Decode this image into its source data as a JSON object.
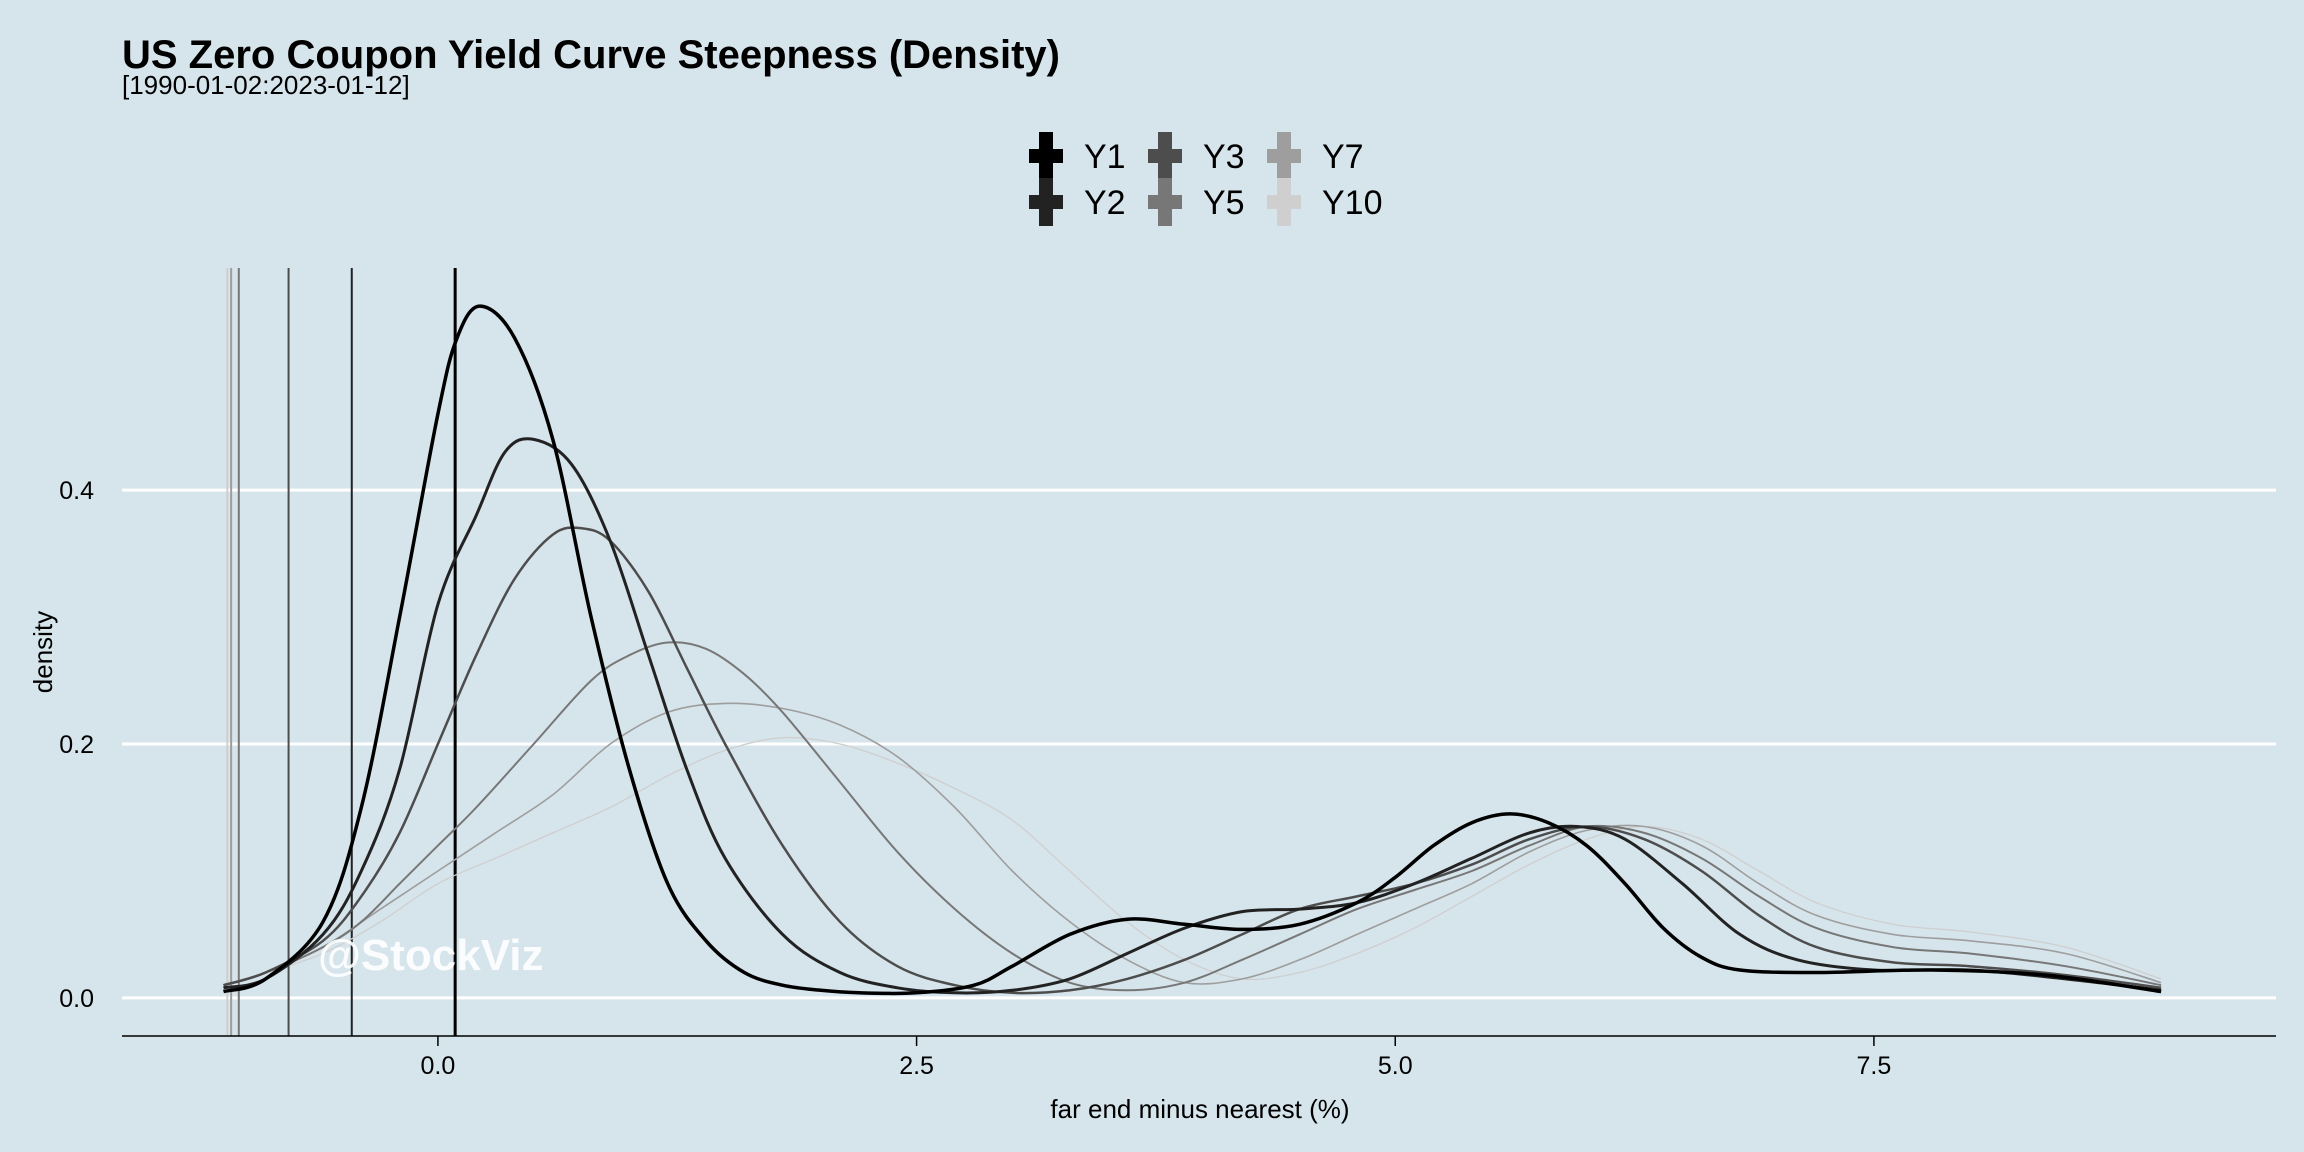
{
  "chart_data": {
    "type": "line",
    "title": "US Zero Coupon Yield Curve Steepness (Density)",
    "subtitle": "[1990-01-02:2023-01-12]",
    "xlabel": "far end minus nearest (%)",
    "ylabel": "density",
    "xlim": [
      -1.65,
      9.6
    ],
    "ylim": [
      -0.03,
      0.575
    ],
    "x_ticks": [
      0.0,
      2.5,
      5.0,
      7.5
    ],
    "x_tick_labels": [
      "0.0",
      "2.5",
      "5.0",
      "7.5"
    ],
    "y_ticks": [
      0.0,
      0.2,
      0.4
    ],
    "y_tick_labels": [
      "0.0",
      "0.2",
      "0.4"
    ],
    "grid": "horizontal major lines",
    "legend_position": "top",
    "watermark": "@StockViz",
    "series": [
      {
        "name": "Y1",
        "color": "#000000",
        "vline_x": 0.09,
        "points": [
          [
            -1.12,
            0.005
          ],
          [
            -0.9,
            0.015
          ],
          [
            -0.6,
            0.06
          ],
          [
            -0.4,
            0.15
          ],
          [
            -0.2,
            0.3
          ],
          [
            0,
            0.46
          ],
          [
            0.1,
            0.52
          ],
          [
            0.22,
            0.545
          ],
          [
            0.4,
            0.52
          ],
          [
            0.6,
            0.44
          ],
          [
            0.8,
            0.3
          ],
          [
            1,
            0.18
          ],
          [
            1.2,
            0.09
          ],
          [
            1.4,
            0.045
          ],
          [
            1.6,
            0.02
          ],
          [
            1.8,
            0.01
          ],
          [
            2,
            0.006
          ],
          [
            2.2,
            0.004
          ],
          [
            2.5,
            0.004
          ],
          [
            2.8,
            0.01
          ],
          [
            3,
            0.025
          ],
          [
            3.3,
            0.05
          ],
          [
            3.6,
            0.062
          ],
          [
            3.9,
            0.058
          ],
          [
            4.2,
            0.054
          ],
          [
            4.5,
            0.058
          ],
          [
            4.8,
            0.075
          ],
          [
            5,
            0.095
          ],
          [
            5.2,
            0.12
          ],
          [
            5.4,
            0.138
          ],
          [
            5.6,
            0.145
          ],
          [
            5.8,
            0.138
          ],
          [
            6,
            0.12
          ],
          [
            6.2,
            0.09
          ],
          [
            6.4,
            0.055
          ],
          [
            6.6,
            0.032
          ],
          [
            6.8,
            0.022
          ],
          [
            7.2,
            0.02
          ],
          [
            7.8,
            0.022
          ],
          [
            8.4,
            0.018
          ],
          [
            9,
            0.005
          ]
        ]
      },
      {
        "name": "Y2",
        "color": "#222222",
        "vline_x": -0.45,
        "points": [
          [
            -1.12,
            0.008
          ],
          [
            -0.9,
            0.015
          ],
          [
            -0.6,
            0.05
          ],
          [
            -0.4,
            0.1
          ],
          [
            -0.2,
            0.18
          ],
          [
            0,
            0.31
          ],
          [
            0.2,
            0.38
          ],
          [
            0.35,
            0.43
          ],
          [
            0.5,
            0.44
          ],
          [
            0.7,
            0.42
          ],
          [
            0.9,
            0.36
          ],
          [
            1.1,
            0.27
          ],
          [
            1.3,
            0.18
          ],
          [
            1.5,
            0.11
          ],
          [
            1.8,
            0.05
          ],
          [
            2.1,
            0.02
          ],
          [
            2.4,
            0.008
          ],
          [
            2.7,
            0.004
          ],
          [
            3,
            0.006
          ],
          [
            3.3,
            0.015
          ],
          [
            3.6,
            0.035
          ],
          [
            3.9,
            0.055
          ],
          [
            4.2,
            0.068
          ],
          [
            4.5,
            0.07
          ],
          [
            4.8,
            0.075
          ],
          [
            5.1,
            0.09
          ],
          [
            5.4,
            0.11
          ],
          [
            5.7,
            0.13
          ],
          [
            5.95,
            0.135
          ],
          [
            6.2,
            0.125
          ],
          [
            6.5,
            0.09
          ],
          [
            6.8,
            0.05
          ],
          [
            7.1,
            0.03
          ],
          [
            7.5,
            0.022
          ],
          [
            8,
            0.022
          ],
          [
            8.5,
            0.015
          ],
          [
            9,
            0.006
          ]
        ]
      },
      {
        "name": "Y3",
        "color": "#4d4d4d",
        "vline_x": -0.78,
        "points": [
          [
            -1.12,
            0.01
          ],
          [
            -0.9,
            0.02
          ],
          [
            -0.6,
            0.045
          ],
          [
            -0.4,
            0.08
          ],
          [
            -0.2,
            0.13
          ],
          [
            0,
            0.2
          ],
          [
            0.2,
            0.27
          ],
          [
            0.4,
            0.33
          ],
          [
            0.6,
            0.365
          ],
          [
            0.75,
            0.37
          ],
          [
            0.9,
            0.36
          ],
          [
            1.1,
            0.32
          ],
          [
            1.3,
            0.26
          ],
          [
            1.5,
            0.2
          ],
          [
            1.8,
            0.12
          ],
          [
            2.1,
            0.06
          ],
          [
            2.4,
            0.025
          ],
          [
            2.7,
            0.01
          ],
          [
            3,
            0.004
          ],
          [
            3.3,
            0.006
          ],
          [
            3.6,
            0.015
          ],
          [
            3.9,
            0.03
          ],
          [
            4.2,
            0.05
          ],
          [
            4.5,
            0.07
          ],
          [
            4.8,
            0.08
          ],
          [
            5.1,
            0.09
          ],
          [
            5.4,
            0.105
          ],
          [
            5.7,
            0.125
          ],
          [
            6,
            0.135
          ],
          [
            6.3,
            0.125
          ],
          [
            6.6,
            0.1
          ],
          [
            6.9,
            0.065
          ],
          [
            7.2,
            0.04
          ],
          [
            7.6,
            0.028
          ],
          [
            8,
            0.025
          ],
          [
            8.5,
            0.018
          ],
          [
            9,
            0.008
          ]
        ]
      },
      {
        "name": "Y5",
        "color": "#777777",
        "vline_x": -1.04,
        "points": [
          [
            -1.12,
            0.01
          ],
          [
            -0.9,
            0.02
          ],
          [
            -0.6,
            0.04
          ],
          [
            -0.4,
            0.06
          ],
          [
            -0.2,
            0.09
          ],
          [
            0,
            0.12
          ],
          [
            0.2,
            0.15
          ],
          [
            0.5,
            0.2
          ],
          [
            0.8,
            0.25
          ],
          [
            1.0,
            0.27
          ],
          [
            1.2,
            0.28
          ],
          [
            1.4,
            0.275
          ],
          [
            1.6,
            0.255
          ],
          [
            1.8,
            0.225
          ],
          [
            2.1,
            0.17
          ],
          [
            2.4,
            0.115
          ],
          [
            2.7,
            0.07
          ],
          [
            3,
            0.035
          ],
          [
            3.3,
            0.012
          ],
          [
            3.6,
            0.006
          ],
          [
            3.9,
            0.012
          ],
          [
            4.2,
            0.03
          ],
          [
            4.5,
            0.05
          ],
          [
            4.8,
            0.07
          ],
          [
            5.1,
            0.085
          ],
          [
            5.4,
            0.1
          ],
          [
            5.7,
            0.12
          ],
          [
            6,
            0.135
          ],
          [
            6.3,
            0.13
          ],
          [
            6.6,
            0.11
          ],
          [
            6.9,
            0.08
          ],
          [
            7.2,
            0.055
          ],
          [
            7.6,
            0.04
          ],
          [
            8,
            0.035
          ],
          [
            8.5,
            0.025
          ],
          [
            9,
            0.01
          ]
        ]
      },
      {
        "name": "Y7",
        "color": "#9e9e9e",
        "vline_x": -1.08,
        "points": [
          [
            -1.12,
            0.01
          ],
          [
            -0.9,
            0.02
          ],
          [
            -0.6,
            0.04
          ],
          [
            -0.3,
            0.07
          ],
          [
            0,
            0.1
          ],
          [
            0.3,
            0.13
          ],
          [
            0.6,
            0.16
          ],
          [
            0.9,
            0.2
          ],
          [
            1.2,
            0.225
          ],
          [
            1.5,
            0.232
          ],
          [
            1.8,
            0.228
          ],
          [
            2.1,
            0.215
          ],
          [
            2.4,
            0.19
          ],
          [
            2.7,
            0.15
          ],
          [
            3,
            0.1
          ],
          [
            3.3,
            0.06
          ],
          [
            3.6,
            0.03
          ],
          [
            3.9,
            0.012
          ],
          [
            4.2,
            0.015
          ],
          [
            4.5,
            0.03
          ],
          [
            4.8,
            0.05
          ],
          [
            5.1,
            0.07
          ],
          [
            5.4,
            0.09
          ],
          [
            5.7,
            0.115
          ],
          [
            6,
            0.132
          ],
          [
            6.3,
            0.135
          ],
          [
            6.6,
            0.12
          ],
          [
            6.9,
            0.09
          ],
          [
            7.2,
            0.065
          ],
          [
            7.6,
            0.05
          ],
          [
            8,
            0.045
          ],
          [
            8.5,
            0.035
          ],
          [
            9,
            0.012
          ]
        ]
      },
      {
        "name": "Y10",
        "color": "#cfcfcf",
        "vline_x": -1.1,
        "points": [
          [
            -1.12,
            0.01
          ],
          [
            -0.9,
            0.02
          ],
          [
            -0.6,
            0.035
          ],
          [
            -0.3,
            0.06
          ],
          [
            0,
            0.09
          ],
          [
            0.3,
            0.11
          ],
          [
            0.6,
            0.13
          ],
          [
            0.9,
            0.15
          ],
          [
            1.2,
            0.175
          ],
          [
            1.5,
            0.195
          ],
          [
            1.8,
            0.205
          ],
          [
            2.1,
            0.2
          ],
          [
            2.4,
            0.185
          ],
          [
            2.7,
            0.165
          ],
          [
            3,
            0.14
          ],
          [
            3.3,
            0.1
          ],
          [
            3.6,
            0.06
          ],
          [
            3.9,
            0.03
          ],
          [
            4.2,
            0.015
          ],
          [
            4.5,
            0.02
          ],
          [
            4.8,
            0.035
          ],
          [
            5.1,
            0.055
          ],
          [
            5.4,
            0.08
          ],
          [
            5.7,
            0.105
          ],
          [
            6,
            0.125
          ],
          [
            6.3,
            0.135
          ],
          [
            6.6,
            0.125
          ],
          [
            6.9,
            0.1
          ],
          [
            7.2,
            0.075
          ],
          [
            7.6,
            0.058
          ],
          [
            8,
            0.052
          ],
          [
            8.5,
            0.04
          ],
          [
            9,
            0.015
          ]
        ]
      }
    ]
  }
}
